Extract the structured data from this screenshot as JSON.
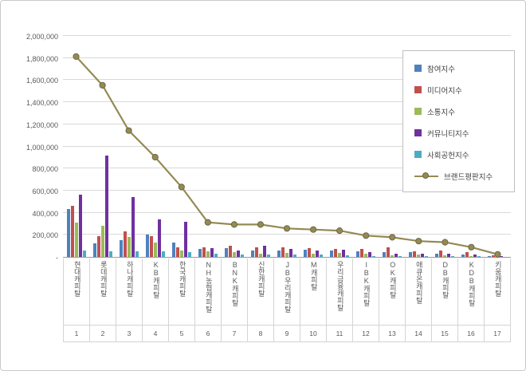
{
  "chart_data": {
    "type": "bar+line",
    "title": "",
    "grid": true,
    "legend_position": "right-top",
    "ylim": [
      0,
      2000000
    ],
    "y_ticks": [
      "-",
      "200,000",
      "400,000",
      "600,000",
      "800,000",
      "1,000,000",
      "1,200,000",
      "1,400,000",
      "1,600,000",
      "1,800,000",
      "2,000,000"
    ],
    "categories": [
      "현대캐피탈",
      "롯데캐피탈",
      "하나캐피탈",
      "KB캐피탈",
      "한국캐피탈",
      "NH농협캐피탈",
      "BNK캐피탈",
      "신한캐피탈",
      "JB우리캐피탈",
      "M캐피탈",
      "우리금융캐피탈",
      "IBK캐피탈",
      "OK캐피탈",
      "애큐온캐피탈",
      "DB캐피탈",
      "KDB캐피탈",
      "키움캐피탈"
    ],
    "category_numbers": [
      "1",
      "2",
      "3",
      "4",
      "5",
      "6",
      "7",
      "8",
      "9",
      "10",
      "11",
      "12",
      "13",
      "14",
      "15",
      "16",
      "17"
    ],
    "series": [
      {
        "name": "참여지수",
        "type": "bar",
        "color": "#4F81BD",
        "values": [
          430000,
          120000,
          150000,
          200000,
          130000,
          70000,
          80000,
          60000,
          55000,
          65000,
          55000,
          50000,
          45000,
          40000,
          30000,
          20000,
          8000
        ]
      },
      {
        "name": "미디어지수",
        "type": "bar",
        "color": "#C0504D",
        "values": [
          460000,
          190000,
          230000,
          190000,
          90000,
          90000,
          100000,
          90000,
          85000,
          80000,
          75000,
          70000,
          85000,
          50000,
          55000,
          40000,
          12000
        ]
      },
      {
        "name": "소통지수",
        "type": "bar",
        "color": "#9BBB59",
        "values": [
          310000,
          280000,
          180000,
          130000,
          60000,
          50000,
          40000,
          30000,
          35000,
          30000,
          35000,
          30000,
          18000,
          20000,
          18000,
          10000,
          4000
        ]
      },
      {
        "name": "커뮤니티지수",
        "type": "bar",
        "color": "#7030A0",
        "values": [
          560000,
          920000,
          540000,
          340000,
          320000,
          80000,
          60000,
          100000,
          70000,
          60000,
          65000,
          40000,
          28000,
          30000,
          27000,
          20000,
          4000
        ]
      },
      {
        "name": "사회공헌지수",
        "type": "bar",
        "color": "#4BACC6",
        "values": [
          60000,
          50000,
          50000,
          50000,
          40000,
          30000,
          20000,
          20000,
          20000,
          20000,
          15000,
          10000,
          9000,
          10000,
          10000,
          5000,
          2000
        ]
      },
      {
        "name": "브랜드평판지수",
        "type": "line",
        "color": "#948A54",
        "values": [
          1820000,
          1560000,
          1150000,
          910000,
          640000,
          320000,
          300000,
          300000,
          265000,
          255000,
          245000,
          200000,
          185000,
          150000,
          140000,
          95000,
          30000
        ]
      }
    ]
  }
}
